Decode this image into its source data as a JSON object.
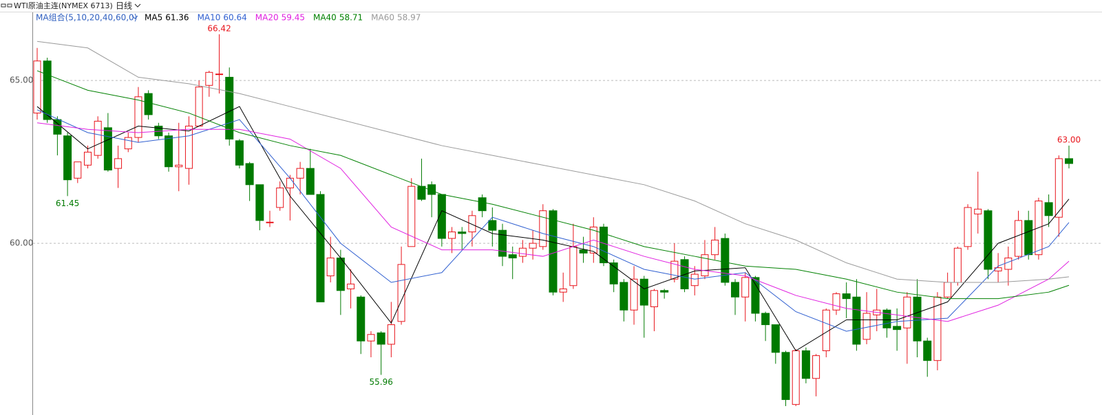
{
  "chart_data": {
    "type": "candlestick",
    "title": "WTI原油主连(NYMEX 6713)",
    "period": "日线",
    "ma_group": "MA组合(5,10,20,40,60,0)",
    "ylim": [
      54.98,
      67.05
    ],
    "yticks": [
      {
        "value": 60,
        "label": "60.00"
      },
      {
        "value": 65,
        "label": "65.00"
      }
    ],
    "grid": true,
    "up_color": "#e8141b",
    "down_color": "#007a00",
    "open": [
      64.0,
      65.6,
      63.8,
      63.3,
      62.0,
      62.4,
      62.7,
      63.55,
      62.3,
      62.9,
      63.25,
      64.6,
      63.6,
      63.3,
      62.35,
      62.3,
      63.6,
      64.85,
      65.2,
      65.1,
      63.15,
      62.45,
      61.8,
      60.65,
      61.1,
      61.7,
      62.0,
      62.3,
      61.5,
      59.0,
      59.55,
      58.6,
      58.35,
      57.0,
      57.25,
      56.9,
      57.6,
      59.9,
      61.75,
      61.8,
      61.5,
      60.15,
      60.35,
      60.35,
      61.4,
      60.7,
      60.4,
      59.65,
      59.6,
      59.85,
      59.9,
      61.0,
      58.5,
      58.7,
      59.8,
      59.7,
      60.5,
      59.4,
      58.8,
      57.95,
      58.9,
      58.05,
      58.55,
      58.9,
      59.5,
      58.7,
      59.0,
      59.65,
      60.15,
      58.8,
      58.35,
      58.95,
      57.85,
      57.5,
      56.65,
      55.05,
      56.7,
      55.85,
      56.7,
      57.95,
      58.45,
      58.35,
      57.05,
      57.8,
      57.95,
      57.45,
      57.4,
      58.35,
      57.0,
      56.4,
      58.35,
      58.8,
      59.9,
      60.9,
      61.0,
      59.15,
      59.2,
      59.6,
      60.7,
      59.65,
      61.25,
      60.8,
      62.6
    ],
    "high": [
      66.0,
      65.7,
      63.9,
      63.4,
      62.5,
      63.0,
      63.9,
      64.0,
      63.0,
      63.4,
      64.8,
      64.7,
      63.7,
      63.4,
      63.7,
      63.9,
      65.0,
      65.3,
      66.42,
      65.4,
      63.2,
      62.5,
      61.8,
      61.0,
      61.9,
      62.1,
      62.5,
      62.9,
      61.6,
      60.2,
      59.8,
      59.2,
      58.4,
      57.3,
      57.3,
      58.2,
      59.9,
      62.0,
      62.6,
      61.9,
      61.5,
      60.5,
      60.5,
      61.0,
      61.5,
      61.1,
      60.6,
      59.9,
      60.1,
      60.4,
      61.2,
      61.05,
      59.1,
      60.6,
      60.2,
      60.8,
      60.6,
      59.5,
      58.9,
      59.3,
      59.0,
      58.6,
      58.6,
      60.0,
      59.6,
      59.3,
      60.1,
      60.5,
      60.3,
      58.9,
      59.1,
      59.0,
      57.9,
      57.5,
      56.7,
      56.75,
      56.8,
      56.6,
      58.0,
      58.5,
      58.8,
      58.9,
      58.5,
      58.6,
      58.0,
      58.0,
      58.5,
      58.9,
      57.1,
      58.5,
      59.1,
      59.9,
      61.2,
      62.2,
      61.05,
      59.7,
      59.9,
      61.0,
      61.0,
      61.4,
      61.5,
      62.7,
      63.0
    ],
    "low": [
      63.8,
      63.7,
      62.7,
      61.45,
      61.85,
      62.3,
      62.6,
      62.2,
      61.7,
      62.8,
      63.1,
      63.8,
      63.2,
      62.2,
      61.6,
      61.8,
      63.6,
      64.5,
      64.6,
      63.0,
      62.3,
      61.3,
      60.4,
      60.5,
      61.0,
      60.7,
      61.5,
      61.5,
      58.2,
      58.8,
      57.8,
      58.0,
      56.6,
      56.5,
      55.96,
      56.5,
      57.5,
      59.9,
      61.3,
      60.8,
      59.9,
      59.7,
      59.8,
      59.9,
      60.8,
      59.9,
      59.3,
      58.9,
      59.4,
      59.5,
      59.8,
      58.4,
      58.2,
      58.6,
      59.4,
      59.4,
      59.3,
      58.5,
      57.6,
      57.5,
      57.1,
      57.3,
      58.3,
      58.8,
      58.5,
      58.4,
      58.9,
      59.5,
      58.7,
      57.8,
      57.6,
      57.6,
      57.0,
      56.3,
      55.0,
      55.0,
      55.7,
      55.3,
      56.5,
      57.8,
      57.7,
      56.7,
      56.9,
      57.3,
      57.1,
      56.7,
      56.3,
      56.5,
      55.9,
      56.1,
      58.3,
      58.7,
      59.8,
      60.3,
      58.9,
      58.8,
      58.7,
      59.5,
      59.5,
      59.5,
      60.5,
      60.2,
      62.3
    ],
    "close": [
      65.6,
      63.8,
      63.35,
      61.95,
      62.5,
      62.8,
      63.75,
      62.25,
      62.6,
      63.25,
      64.5,
      63.95,
      63.3,
      62.35,
      62.4,
      63.6,
      64.8,
      65.25,
      65.2,
      63.2,
      62.4,
      61.8,
      60.7,
      60.65,
      61.7,
      62.0,
      62.3,
      61.5,
      58.2,
      59.55,
      58.55,
      58.75,
      57.0,
      57.2,
      56.9,
      57.5,
      59.35,
      61.75,
      61.35,
      61.5,
      60.15,
      60.35,
      60.3,
      60.85,
      61.0,
      60.4,
      59.6,
      59.55,
      59.85,
      60.0,
      61.0,
      58.5,
      58.6,
      59.9,
      59.7,
      60.5,
      59.4,
      58.75,
      57.95,
      58.9,
      58.1,
      58.55,
      58.5,
      59.45,
      58.6,
      59.05,
      59.65,
      60.1,
      58.8,
      58.35,
      58.95,
      57.85,
      57.5,
      56.65,
      55.2,
      56.7,
      55.85,
      56.55,
      57.95,
      58.45,
      58.3,
      56.9,
      57.85,
      57.95,
      57.4,
      57.35,
      58.35,
      57.0,
      56.4,
      58.35,
      58.8,
      59.85,
      61.1,
      61.05,
      59.2,
      59.25,
      59.55,
      60.7,
      59.65,
      61.3,
      60.85,
      62.6,
      62.45
    ],
    "extremes": [
      {
        "candle": 18,
        "field": "high",
        "label": "66.42"
      },
      {
        "candle": 3,
        "field": "low",
        "label": "61.45"
      },
      {
        "candle": 34,
        "field": "low",
        "label": "55.96"
      },
      {
        "candle": 102,
        "field": "high",
        "label": "63.00"
      }
    ],
    "ma_x": [
      0,
      5,
      10,
      15,
      20,
      25,
      30,
      35,
      40,
      45,
      50,
      55,
      60,
      65,
      70,
      75,
      80,
      85,
      90,
      95,
      100,
      102
    ],
    "series": [
      {
        "name": "MA5",
        "color": "#000000",
        "values": [
          64.2,
          62.9,
          63.6,
          63.45,
          64.2,
          61.45,
          59.55,
          57.55,
          61.0,
          60.3,
          60.1,
          59.75,
          58.6,
          59.15,
          59.25,
          56.7,
          57.65,
          57.65,
          58.2,
          60.0,
          60.6,
          61.36
        ]
      },
      {
        "name": "MA10",
        "color": "#2f5fd0",
        "values": [
          64.1,
          63.4,
          63.1,
          63.3,
          63.8,
          62.0,
          60.0,
          58.8,
          59.1,
          60.8,
          60.3,
          59.9,
          59.2,
          58.9,
          59.1,
          57.9,
          57.3,
          57.6,
          57.7,
          59.3,
          59.9,
          60.64
        ]
      },
      {
        "name": "MA20",
        "color": "#e020e0",
        "values": [
          63.7,
          63.5,
          63.4,
          63.5,
          63.5,
          63.2,
          62.3,
          60.5,
          59.8,
          59.8,
          59.6,
          60.1,
          59.6,
          59.2,
          59.0,
          58.4,
          58.0,
          57.8,
          57.6,
          58.1,
          58.9,
          59.45
        ]
      },
      {
        "name": "MA40",
        "color": "#008000",
        "values": [
          65.3,
          64.7,
          64.4,
          64.0,
          63.4,
          63.0,
          62.7,
          62.1,
          61.5,
          61.2,
          60.8,
          60.4,
          59.9,
          59.6,
          59.3,
          59.2,
          58.9,
          58.5,
          58.3,
          58.3,
          58.5,
          58.71
        ]
      },
      {
        "name": "MA60",
        "color": "#999999",
        "values": [
          66.2,
          66.0,
          65.1,
          64.9,
          64.6,
          64.2,
          63.8,
          63.4,
          63.0,
          62.7,
          62.4,
          62.1,
          61.8,
          61.3,
          60.6,
          60.1,
          59.4,
          58.9,
          58.8,
          58.8,
          58.9,
          58.97
        ]
      }
    ]
  }
}
